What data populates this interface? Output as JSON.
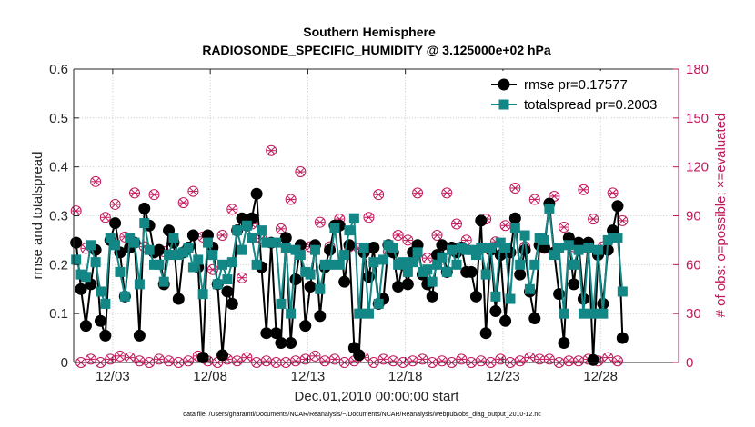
{
  "colors": {
    "rmse": "#000000",
    "spread": "#138686",
    "obs": "#c2185b",
    "axis": "#262626",
    "grid": "#c8c8c8"
  },
  "chart_data": {
    "type": "line",
    "title": "Southern Hemisphere",
    "subtitle": "RADIOSONDE_SPECIFIC_HUMIDITY @ 3.125000e+02 hPa",
    "xlabel": "Dec.01,2010 00:00:00 start",
    "ylabel": "rmse and totalspread",
    "ylabel_right": "# of obs: o=possible; ×=evaluated",
    "footnote": "data file: /Users/gharamti/Documents/NCAR/Reanalysis/~/Documents/NCAR/Reanalysis/webpub/obs_diag_output_2010-12.nc",
    "xlim": [
      1.0,
      32.0
    ],
    "ylim": [
      0,
      0.6
    ],
    "ylim_right": [
      0,
      180
    ],
    "yticks": [
      "0",
      "0.1",
      "0.2",
      "0.3",
      "0.4",
      "0.5",
      "0.6"
    ],
    "yticks_right": [
      "0",
      "30",
      "60",
      "90",
      "120",
      "150",
      "180"
    ],
    "xticks": [
      {
        "pos": 3,
        "label": "12/03"
      },
      {
        "pos": 8,
        "label": "12/08"
      },
      {
        "pos": 13,
        "label": "12/13"
      },
      {
        "pos": 18,
        "label": "12/18"
      },
      {
        "pos": 23,
        "label": "12/23"
      },
      {
        "pos": 28,
        "label": "12/28"
      }
    ],
    "grid": true,
    "legend_position": "top-right",
    "series": [
      {
        "name": "rmse pr=0.17577",
        "axis": "left",
        "marker": "circle",
        "x_start": 1.125,
        "x_step": 0.25,
        "values": [
          0.245,
          0.15,
          0.075,
          0.16,
          0.23,
          0.085,
          0.055,
          0.25,
          0.285,
          0.225,
          0.135,
          0.235,
          0.245,
          0.055,
          0.315,
          0.28,
          0.225,
          0.23,
          0.16,
          0.27,
          0.245,
          0.13,
          0.225,
          0.235,
          0.26,
          0.195,
          0.01,
          0.26,
          0.235,
          0.16,
          0.015,
          0.145,
          0.12,
          0.27,
          0.295,
          0.28,
          0.295,
          0.345,
          0.195,
          0.06,
          0.245,
          0.06,
          0.04,
          0.255,
          0.04,
          0.17,
          0.24,
          0.075,
          0.155,
          0.24,
          0.095,
          0.195,
          0.23,
          0.28,
          0.28,
          0.165,
          0.24,
          0.03,
          0.015,
          0.225,
          0.175,
          0.235,
          0.12,
          0.13,
          0.24,
          0.225,
          0.155,
          0.2,
          0.16,
          0.225,
          0.24,
          0.18,
          0.16,
          0.135,
          0.22,
          0.24,
          0.185,
          0.235,
          0.225,
          0.235,
          0.185,
          0.185,
          0.135,
          0.29,
          0.06,
          0.23,
          0.105,
          0.22,
          0.085,
          0.225,
          0.295,
          0.18,
          0.23,
          0.145,
          0.09,
          0.24,
          0.235,
          0.325,
          0.225,
          0.14,
          0.04,
          0.255,
          0.16,
          0.245,
          0.13,
          0.245,
          0.005,
          0.22,
          0.12,
          0.23,
          0.27,
          0.32,
          0.05
        ]
      },
      {
        "name": "totalspread pr=0.2003",
        "axis": "left",
        "marker": "square",
        "x_start": 1.125,
        "x_step": 0.25,
        "values": [
          0.21,
          0.18,
          0.175,
          0.24,
          0.205,
          0.145,
          0.12,
          0.255,
          0.24,
          0.185,
          0.135,
          0.255,
          0.245,
          0.16,
          0.285,
          0.23,
          0.2,
          0.2,
          0.165,
          0.22,
          0.255,
          0.22,
          0.225,
          0.235,
          0.195,
          0.21,
          0.14,
          0.245,
          0.22,
          0.16,
          0.2,
          0.17,
          0.205,
          0.27,
          0.23,
          0.28,
          0.255,
          0.2,
          0.27,
          0.245,
          0.245,
          0.245,
          0.12,
          0.235,
          0.1,
          0.23,
          0.22,
          0.185,
          0.18,
          0.23,
          0.15,
          0.2,
          0.2,
          0.275,
          0.2,
          0.22,
          0.27,
          0.295,
          0.1,
          0.235,
          0.1,
          0.205,
          0.12,
          0.21,
          0.24,
          0.235,
          0.2,
          0.205,
          0.185,
          0.205,
          0.225,
          0.185,
          0.19,
          0.165,
          0.2,
          0.215,
          0.185,
          0.23,
          0.2,
          0.235,
          0.23,
          0.23,
          0.22,
          0.235,
          0.18,
          0.235,
          0.135,
          0.245,
          0.235,
          0.13,
          0.275,
          0.2,
          0.26,
          0.15,
          0.2,
          0.255,
          0.25,
          0.315,
          0.22,
          0.235,
          0.1,
          0.24,
          0.2,
          0.23,
          0.1,
          0.235,
          0.1,
          0.23,
          0.1,
          0.25,
          0.255,
          0.255,
          0.145
        ]
      },
      {
        "name": "obs possible",
        "axis": "right",
        "marker": "o",
        "x_start": 1.125,
        "x_step": 0.25,
        "values": [
          93,
          0,
          70,
          2,
          111,
          0,
          89,
          2,
          97,
          4,
          77,
          3,
          104,
          1,
          71,
          0,
          103,
          2,
          68,
          1,
          75,
          0,
          98,
          1,
          105,
          4,
          77,
          1,
          57,
          0,
          78,
          2,
          94,
          1,
          52,
          3,
          85,
          0,
          76,
          1,
          130,
          0,
          82,
          0,
          100,
          1,
          117,
          2,
          71,
          4,
          86,
          1,
          71,
          2,
          88,
          0,
          71,
          1,
          70,
          3,
          89,
          0,
          103,
          2,
          68,
          1,
          78,
          0,
          75,
          1,
          104,
          2,
          64,
          0,
          78,
          1,
          104,
          0,
          85,
          2,
          75,
          0,
          67,
          1,
          88,
          0,
          74,
          2,
          84,
          0,
          107,
          1,
          71,
          3,
          100,
          2,
          70,
          2,
          102,
          0,
          83,
          1,
          71,
          1,
          106,
          2,
          88,
          1,
          71,
          3,
          104,
          1,
          87
        ]
      },
      {
        "name": "obs evaluated",
        "axis": "right",
        "marker": "x",
        "x_start": 1.125,
        "x_step": 0.25,
        "values": [
          93,
          0,
          70,
          2,
          111,
          0,
          89,
          2,
          97,
          4,
          77,
          3,
          104,
          1,
          71,
          0,
          103,
          2,
          68,
          1,
          75,
          0,
          98,
          1,
          105,
          4,
          77,
          1,
          57,
          0,
          78,
          2,
          94,
          1,
          52,
          3,
          85,
          0,
          76,
          1,
          130,
          0,
          82,
          0,
          100,
          1,
          117,
          2,
          71,
          4,
          86,
          1,
          71,
          2,
          88,
          0,
          71,
          1,
          70,
          3,
          89,
          0,
          103,
          2,
          68,
          1,
          78,
          0,
          75,
          1,
          104,
          2,
          64,
          0,
          78,
          1,
          104,
          0,
          85,
          2,
          75,
          0,
          67,
          1,
          88,
          0,
          74,
          2,
          84,
          0,
          107,
          1,
          71,
          3,
          100,
          2,
          70,
          2,
          102,
          0,
          83,
          1,
          71,
          1,
          106,
          2,
          88,
          1,
          71,
          3,
          104,
          1,
          87
        ]
      }
    ]
  }
}
